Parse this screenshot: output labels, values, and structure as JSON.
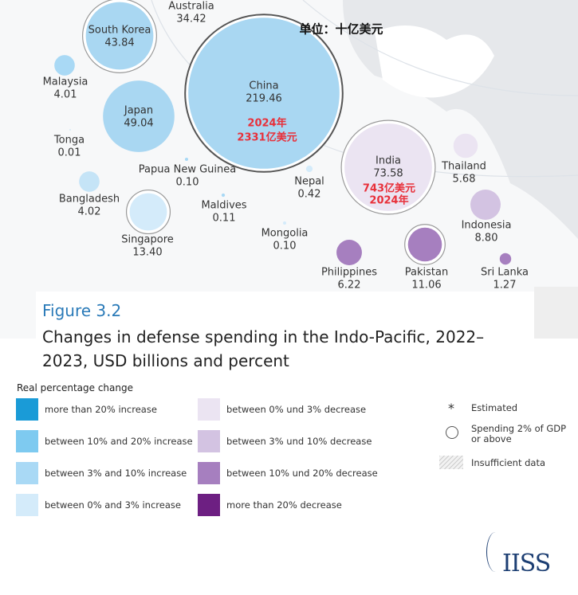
{
  "chart_data": {
    "type": "bubble",
    "unit_note": "单位：十亿美元",
    "figure": "Figure 3.2",
    "title": "Changes in defense spending in the Indo-Pacific, 2022–2023, USD billions and percent",
    "points": [
      {
        "name": "Australia",
        "value": 34.42,
        "color": "#a9d7f2"
      },
      {
        "name": "South Korea",
        "value": 43.84,
        "color": "#a9d7f2",
        "ring": true
      },
      {
        "name": "Malaysia",
        "value": 4.01,
        "color": "#a9d9f5"
      },
      {
        "name": "China",
        "value": 219.46,
        "color": "#a9d7f2",
        "ring": true,
        "notes": [
          "2024年",
          "2331亿美元"
        ]
      },
      {
        "name": "Japan",
        "value": 49.04,
        "color": "#a9d7f2"
      },
      {
        "name": "Tonga",
        "value": 0.01,
        "color": "#a9d9f5"
      },
      {
        "name": "Papua New Guinea",
        "value": 0.1,
        "value_label": "0.10",
        "color": "#a9d9f5"
      },
      {
        "name": "Bangladesh",
        "value": 4.02,
        "color": "#c5e4f7"
      },
      {
        "name": "Singapore",
        "value": 13.4,
        "value_label": "13.40",
        "color": "#d4ebfa",
        "ring": true
      },
      {
        "name": "Maldives",
        "value": 0.11,
        "color": "#a9d9f5"
      },
      {
        "name": "Nepal",
        "value": 0.42,
        "color": "#d4ebfa"
      },
      {
        "name": "India",
        "value": 73.58,
        "color": "#ebe4f2",
        "ring": true,
        "notes": [
          "743亿美元",
          "2024年"
        ]
      },
      {
        "name": "Thailand",
        "value": 5.68,
        "color": "#ebe4f2"
      },
      {
        "name": "Indonesia",
        "value": 8.8,
        "value_label": "8.80",
        "color": "#d3c3e2"
      },
      {
        "name": "Mongolia",
        "value": 0.1,
        "value_label": "0.10",
        "color": "#d4ebfa"
      },
      {
        "name": "Philippines",
        "value": 6.22,
        "color": "#a67fbf"
      },
      {
        "name": "Pakistan",
        "value": 11.06,
        "color": "#a67fbf",
        "ring": true
      },
      {
        "name": "Sri Lanka",
        "value": 1.27,
        "color": "#a67fbf"
      }
    ],
    "legend": {
      "title": "Real percentage change",
      "items": [
        {
          "label": "more than 20% increase",
          "color": "#1a9bd7"
        },
        {
          "label": "between 10% and 20% increase",
          "color": "#7ecaf0"
        },
        {
          "label": "between 3% and 10% increase",
          "color": "#a9d9f5"
        },
        {
          "label": "between 0% and 3% increase",
          "color": "#d4ebfa"
        },
        {
          "label": "between 0% und 3% decrease",
          "color": "#ebe4f2"
        },
        {
          "label": "between 3% und 10% decrease",
          "color": "#d3c3e2"
        },
        {
          "label": "between 10% und 20% decrease",
          "color": "#a67fbf"
        },
        {
          "label": "more than 20% decrease",
          "color": "#6d1f82"
        }
      ],
      "symbols": [
        "Estimated",
        "Spending 2% of GDP or above",
        "Insufficient data"
      ]
    },
    "source": "IISS"
  }
}
